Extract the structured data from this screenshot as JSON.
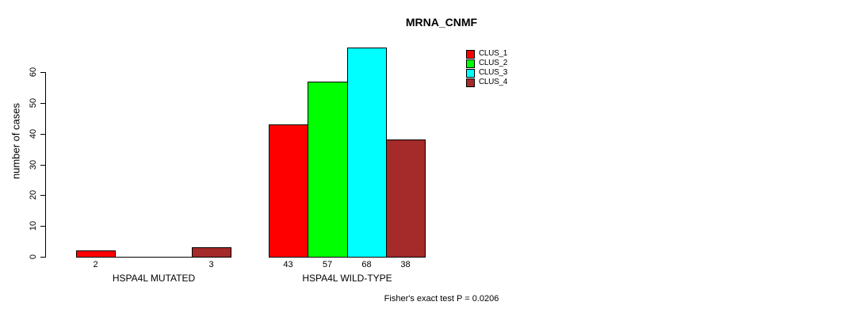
{
  "chart_data": {
    "type": "bar",
    "title": "MRNA_CNMF",
    "ylabel": "number of cases",
    "xlabel": "",
    "yticks": [
      0,
      10,
      20,
      30,
      40,
      50,
      60
    ],
    "ylim": [
      0,
      60
    ],
    "grid": false,
    "legend_position": "top-right",
    "categories": [
      "HSPA4L MUTATED",
      "HSPA4L WILD-TYPE"
    ],
    "series": [
      {
        "name": "CLUS_1",
        "color": "#FF0000",
        "values": [
          2,
          43
        ]
      },
      {
        "name": "CLUS_2",
        "color": "#00FF00",
        "values": [
          0,
          57
        ]
      },
      {
        "name": "CLUS_3",
        "color": "#00FFFF",
        "values": [
          0,
          68
        ]
      },
      {
        "name": "CLUS_4",
        "color": "#A52A2A",
        "values": [
          3,
          38
        ]
      }
    ],
    "bar_value_labels": [
      [
        "2",
        "",
        "",
        "3"
      ],
      [
        "43",
        "57",
        "68",
        "38"
      ]
    ],
    "annotation": "Fisher's exact test P = 0.0206"
  }
}
